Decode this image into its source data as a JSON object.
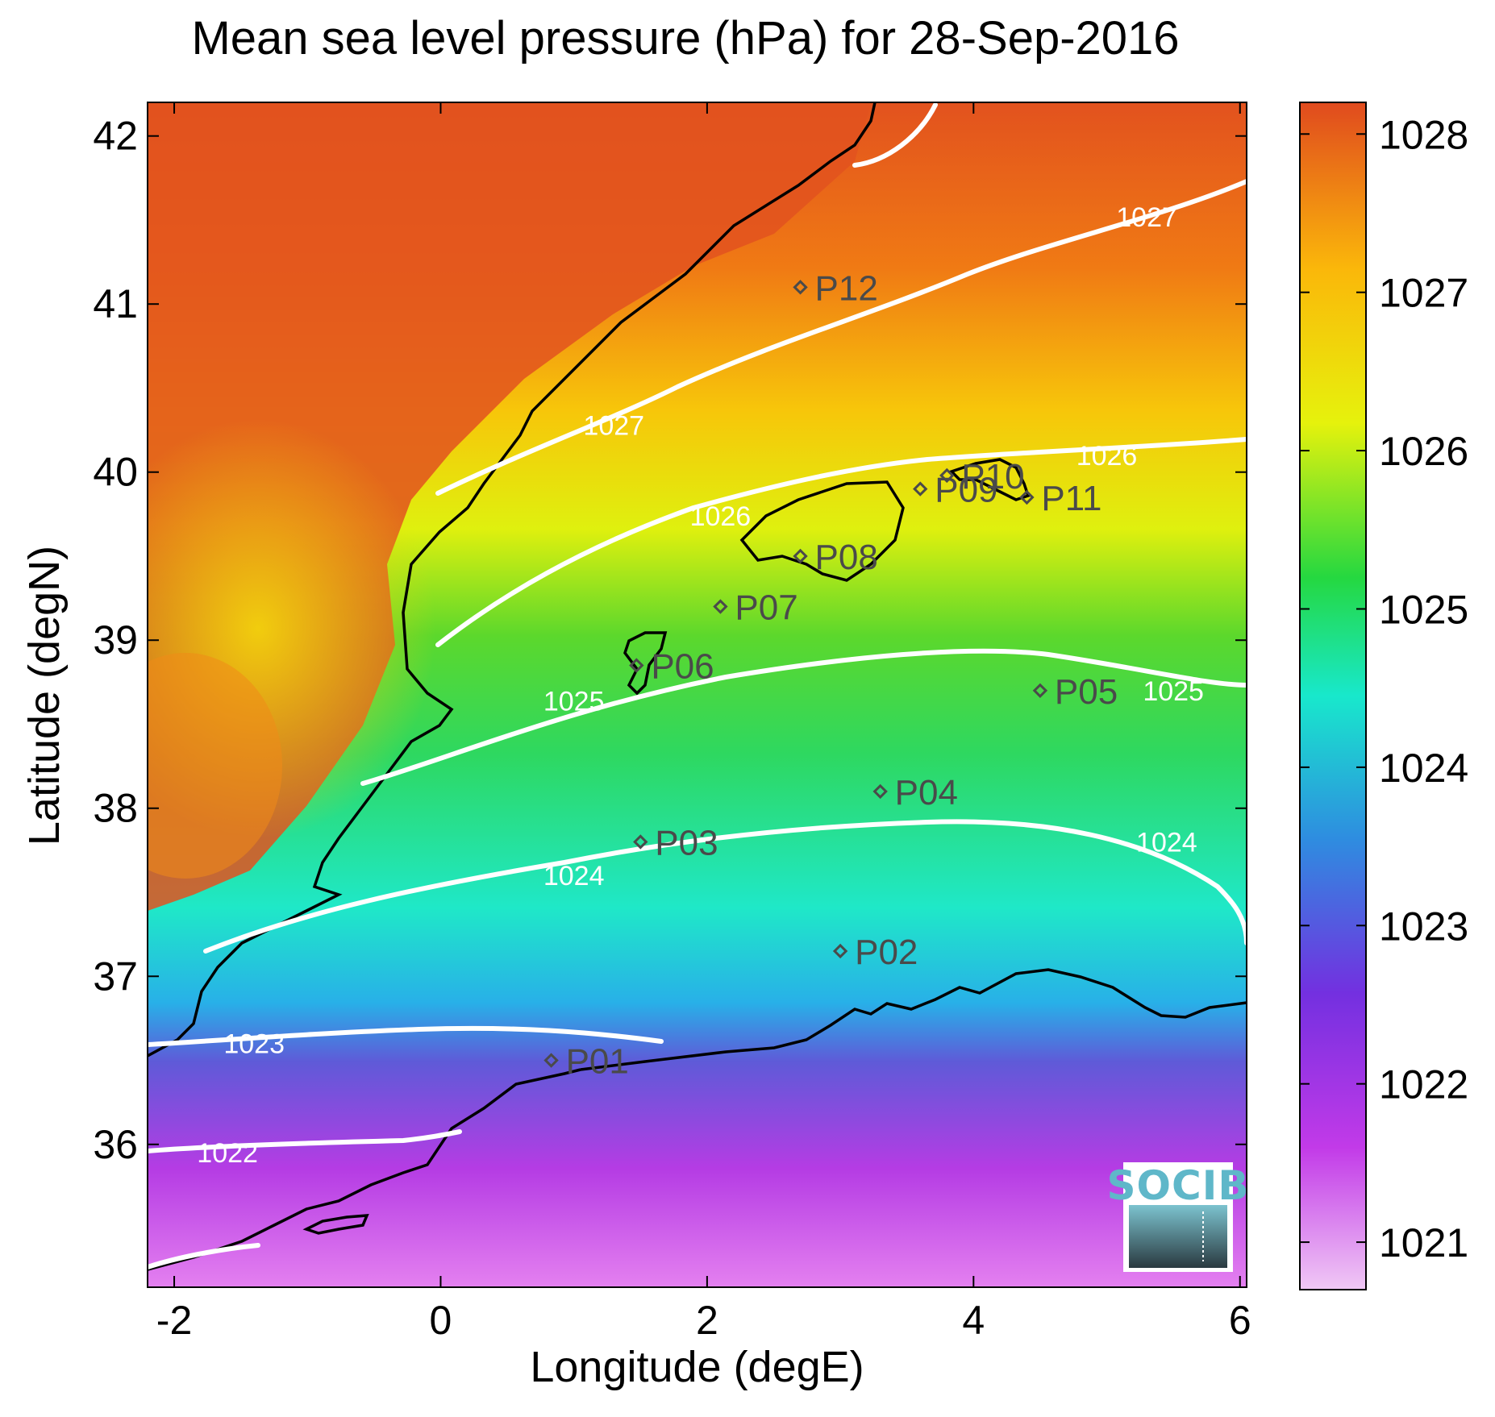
{
  "title": "Mean sea level pressure (hPa) for 28-Sep-2016",
  "xlabel": "Longitude (degE)",
  "ylabel": "Latitude (degN)",
  "logo": "SOCIB",
  "map": {
    "lon_range": [
      -2.2,
      6.05
    ],
    "lat_range": [
      35.15,
      42.2
    ],
    "x_ticks": [
      "-2",
      "0",
      "2",
      "4",
      "6"
    ],
    "y_ticks": [
      "36",
      "37",
      "38",
      "39",
      "40",
      "41",
      "42"
    ],
    "colorbar": {
      "range": [
        1020.7,
        1028.2
      ],
      "ticks": [
        "1021",
        "1022",
        "1023",
        "1024",
        "1025",
        "1026",
        "1027",
        "1028"
      ],
      "stops": [
        "#f0c8f5",
        "#c23ae8",
        "#7330e0",
        "#2e8de0",
        "#18e8cc",
        "#25d840",
        "#e6f20c",
        "#fbb70a",
        "#e04a1e"
      ]
    },
    "contour_labels": [
      {
        "text": "1027",
        "lon": 1.3,
        "lat": 40.28
      },
      {
        "text": "1027",
        "lon": 5.3,
        "lat": 41.52
      },
      {
        "text": "1026",
        "lon": 2.1,
        "lat": 39.74
      },
      {
        "text": "1026",
        "lon": 5.0,
        "lat": 40.1
      },
      {
        "text": "1025",
        "lon": 1.0,
        "lat": 38.64
      },
      {
        "text": "1025",
        "lon": 5.5,
        "lat": 38.7
      },
      {
        "text": "1024",
        "lon": 1.0,
        "lat": 37.6
      },
      {
        "text": "1024",
        "lon": 5.45,
        "lat": 37.8
      },
      {
        "text": "1023",
        "lon": -1.4,
        "lat": 36.6
      },
      {
        "text": "1022",
        "lon": -1.6,
        "lat": 35.95
      }
    ],
    "stations": [
      {
        "name": "P01",
        "lon": 0.83,
        "lat": 36.5
      },
      {
        "name": "P02",
        "lon": 3.0,
        "lat": 37.15
      },
      {
        "name": "P03",
        "lon": 1.5,
        "lat": 37.8
      },
      {
        "name": "P04",
        "lon": 3.3,
        "lat": 38.1
      },
      {
        "name": "P05",
        "lon": 4.5,
        "lat": 38.7
      },
      {
        "name": "P06",
        "lon": 1.47,
        "lat": 38.85
      },
      {
        "name": "P07",
        "lon": 2.1,
        "lat": 39.2
      },
      {
        "name": "P08",
        "lon": 2.7,
        "lat": 39.5
      },
      {
        "name": "P09",
        "lon": 3.6,
        "lat": 39.9
      },
      {
        "name": "P10",
        "lon": 3.8,
        "lat": 39.98
      },
      {
        "name": "P11",
        "lon": 4.4,
        "lat": 39.85
      },
      {
        "name": "P12",
        "lon": 2.7,
        "lat": 41.1
      }
    ]
  }
}
